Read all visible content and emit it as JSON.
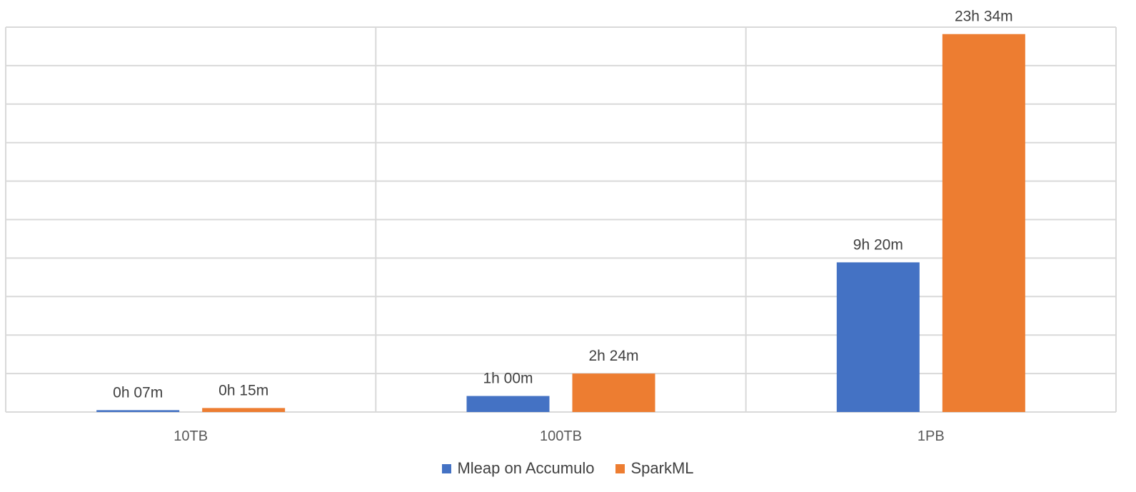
{
  "chart_data": {
    "type": "bar",
    "categories": [
      "10TB",
      "100TB",
      "1PB"
    ],
    "series": [
      {
        "name": "Mleap on Accumulo",
        "color": "#4472C4",
        "values_hours": [
          0.1167,
          1.0,
          9.3333
        ],
        "labels": [
          "0h 07m",
          "1h 00m",
          "9h 20m"
        ]
      },
      {
        "name": "SparkML",
        "color": "#ED7D31",
        "values_hours": [
          0.25,
          2.4,
          23.5667
        ],
        "labels": [
          "0h 15m",
          "2h 24m",
          "23h 34m"
        ]
      }
    ],
    "title": "",
    "xlabel": "",
    "ylabel": "",
    "ylim": [
      0,
      24
    ],
    "grid": true,
    "y_tick_labels_shown": false,
    "legend_position": "bottom"
  }
}
